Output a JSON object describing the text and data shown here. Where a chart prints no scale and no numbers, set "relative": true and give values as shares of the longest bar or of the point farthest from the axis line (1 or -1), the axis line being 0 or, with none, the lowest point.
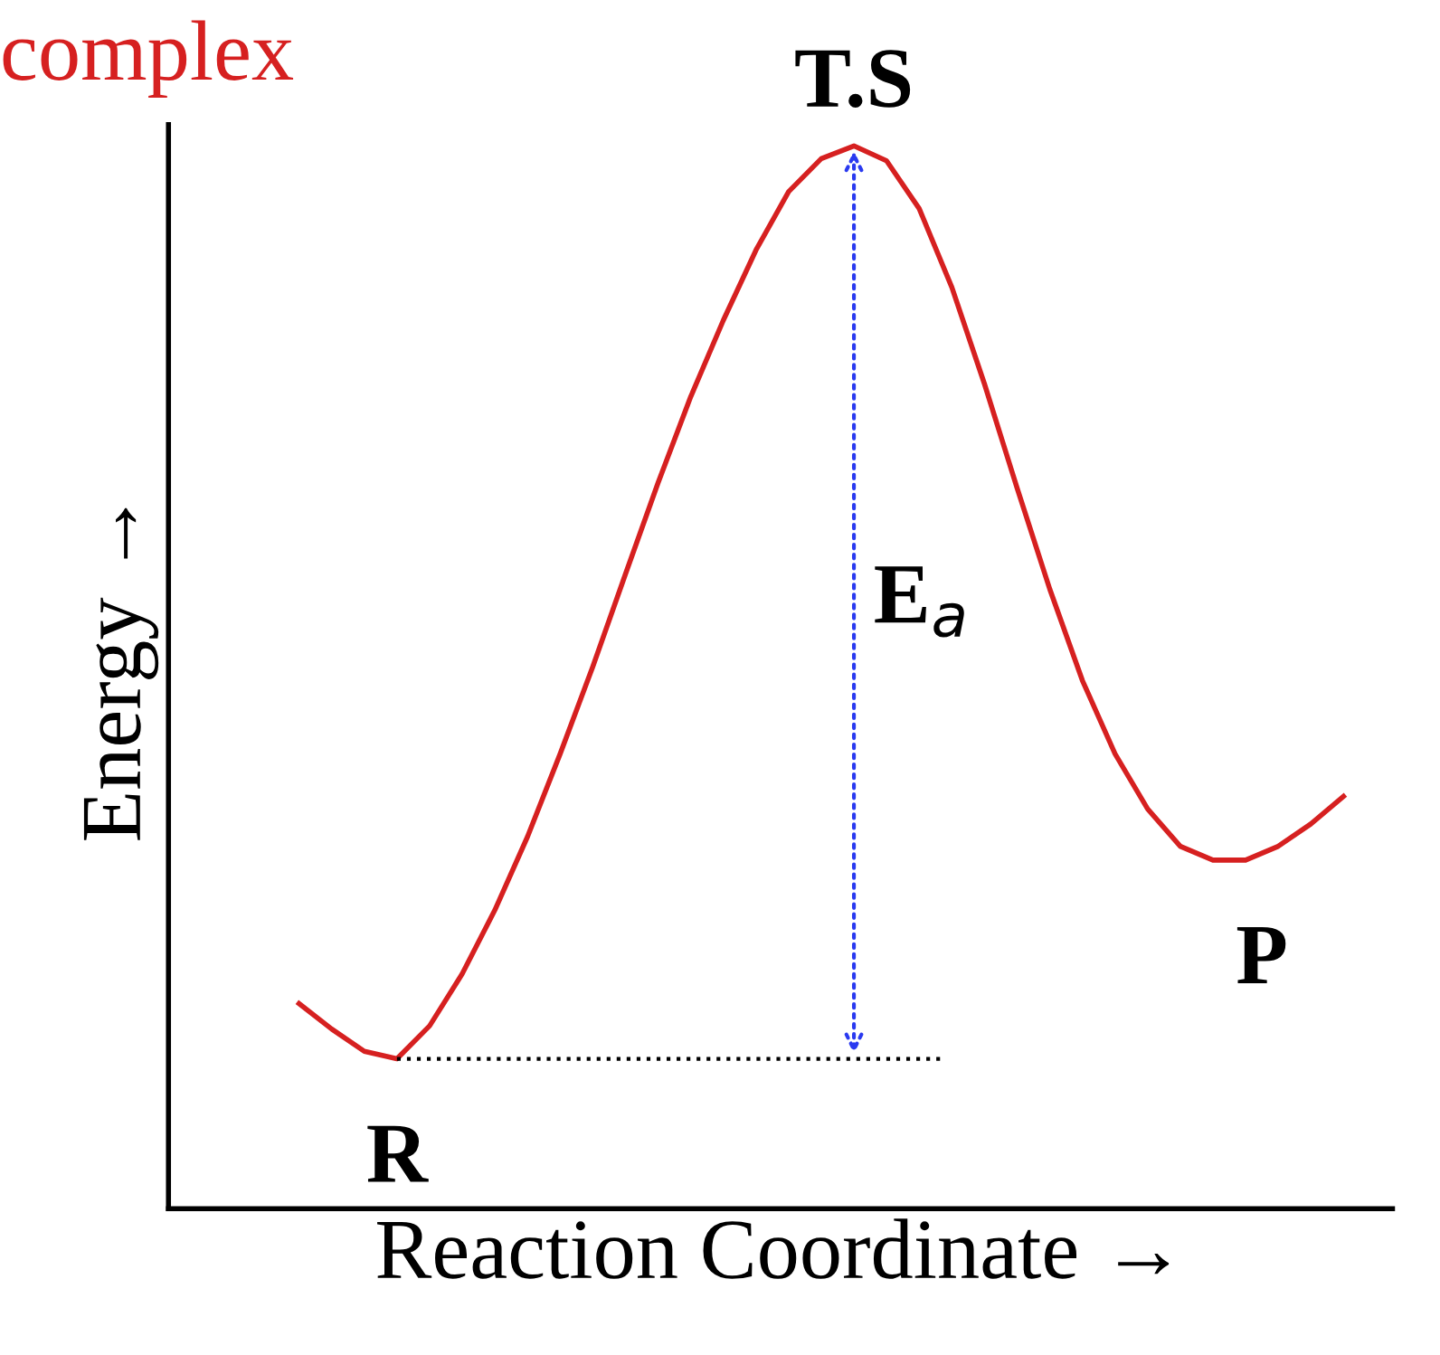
{
  "chart_data": {
    "type": "line",
    "relative": true,
    "xlabel": "Reaction Coordinate →",
    "ylabel": "Energy →",
    "categories": [
      null,
      null,
      null,
      null,
      null,
      null,
      null,
      null,
      null,
      null,
      null,
      null,
      null,
      null,
      null,
      null,
      null,
      null,
      null,
      null,
      null,
      null,
      null,
      null,
      null,
      null,
      null,
      null,
      null,
      null,
      null,
      null,
      null
    ],
    "series": [
      {
        "color": "#d62020",
        "values": [
          0.193,
          0.169,
          0.148,
          0.141,
          0.172,
          0.221,
          0.281,
          0.35,
          0.428,
          0.51,
          0.597,
          0.683,
          0.764,
          0.836,
          0.902,
          0.957,
          0.988,
          1,
          0.986,
          0.941,
          0.867,
          0.776,
          0.678,
          0.583,
          0.497,
          0.428,
          0.376,
          0.341,
          0.328,
          0.328,
          0.341,
          0.362,
          0.388
        ]
      }
    ],
    "ref_lines": [
      {
        "axis": "y",
        "value": 0.141,
        "color": "#000000",
        "line_style": "dotted"
      }
    ],
    "annotations": [
      "complex",
      "T.S",
      "R",
      "P",
      "E$_{a}$"
    ],
    "legend": false,
    "marker": "none",
    "line_style": "solid"
  }
}
